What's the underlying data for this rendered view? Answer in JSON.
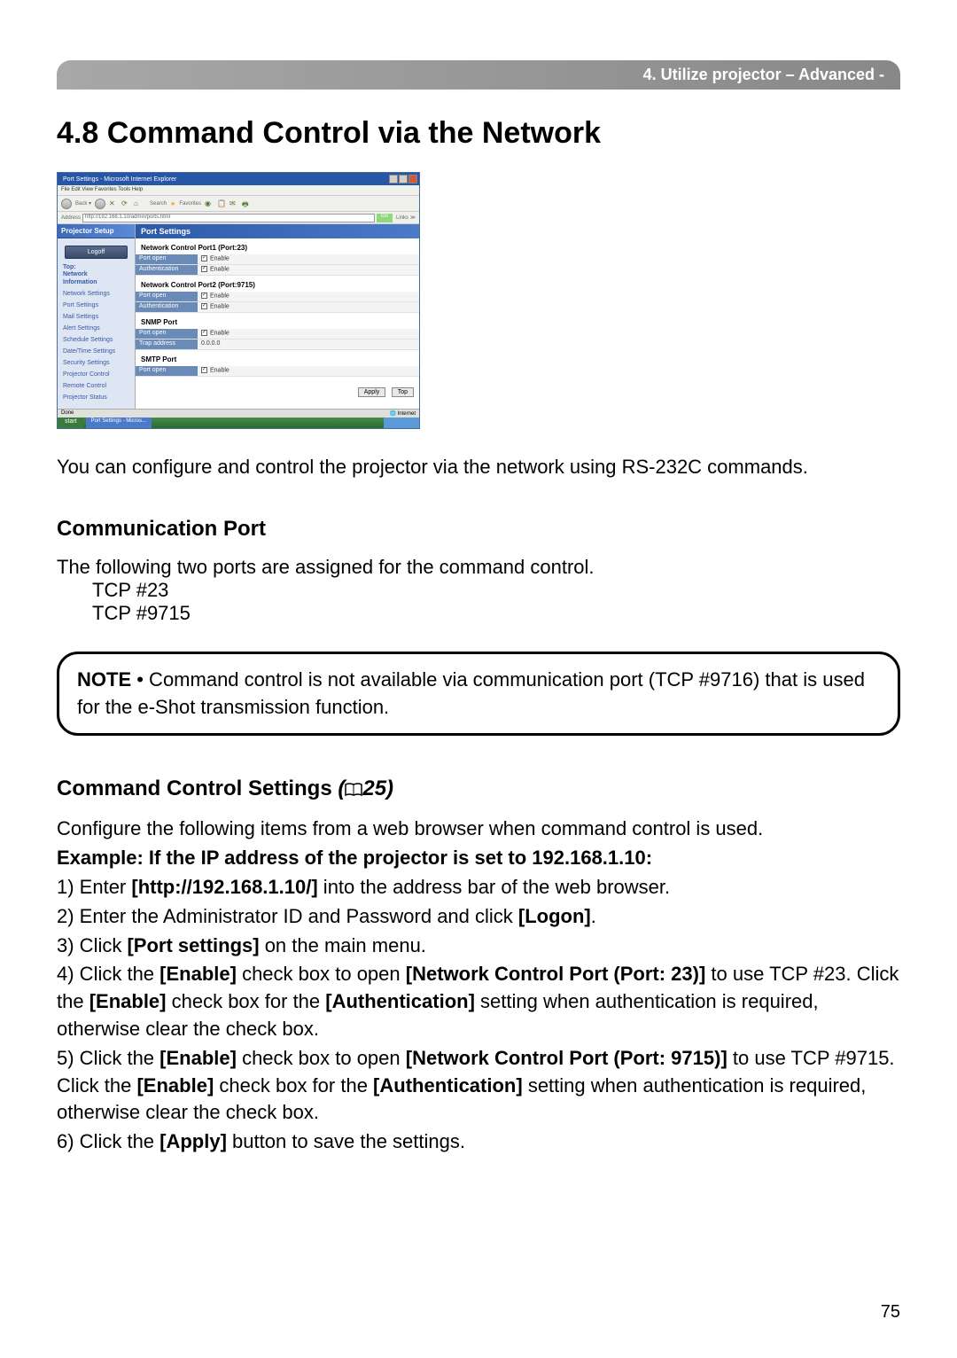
{
  "header": {
    "breadcrumb": "4. Utilize projector – Advanced -"
  },
  "section_title": "4.8 Command Control via the Network",
  "screenshot": {
    "window_title": "Port Settings - Microsoft Internet Explorer",
    "menubar": "File  Edit  View  Favorites  Tools  Help",
    "address": "http://192.168.1.10/admin/ports.html",
    "go": "Go",
    "sidebar": {
      "header": "Projector Setup",
      "logoff_button": "Logoff",
      "top_label": "Top:\nNetwork\nInformation",
      "items": [
        "Network Settings",
        "Port Settings",
        "Mail Settings",
        "Alert Settings",
        "Schedule Settings",
        "Date/Time Settings",
        "Security Settings",
        "Projector Control",
        "Remote Control",
        "Projector Status"
      ]
    },
    "main": {
      "header": "Port Settings",
      "sections": [
        {
          "title": "Network Control Port1 (Port:23)",
          "rows": [
            {
              "label": "Port open",
              "value": "Enable",
              "checkbox": true
            },
            {
              "label": "Authentication",
              "value": "Enable",
              "checkbox": true
            }
          ]
        },
        {
          "title": "Network Control Port2 (Port:9715)",
          "rows": [
            {
              "label": "Port open",
              "value": "Enable",
              "checkbox": true
            },
            {
              "label": "Authentication",
              "value": "Enable",
              "checkbox": true
            }
          ]
        },
        {
          "title": "SNMP Port",
          "rows": [
            {
              "label": "Port open",
              "value": "Enable",
              "checkbox": true
            },
            {
              "label": "Trap address",
              "value": "0.0.0.0",
              "checkbox": false
            }
          ]
        },
        {
          "title": "SMTP Port",
          "rows": [
            {
              "label": "Port open",
              "value": "Enable",
              "checkbox": true
            }
          ]
        }
      ],
      "buttons": [
        "Apply",
        "Top"
      ]
    },
    "statusbar_left": "Done",
    "statusbar_right": "Internet",
    "start": "start",
    "task": "Port Settings - Micros..."
  },
  "intro_text": "You can configure and control the projector via the network using RS-232C commands.",
  "comm_port": {
    "heading": "Communication Port",
    "intro": "The following two ports are assigned for the command control.",
    "ports": [
      "TCP #23",
      "TCP #9715"
    ]
  },
  "note": {
    "label": "NOTE",
    "text": " • Command control is not available via communication port (TCP #9716) that is used for the e-Shot transmission function."
  },
  "cmd_settings": {
    "heading": "Command Control Settings",
    "ref": "25",
    "intro": "Configure the following items from a web browser when command control is used.",
    "example_label": "Example: If the IP address of the projector is set to 192.168.1.10:",
    "steps": [
      {
        "n": "1)",
        "pre": " Enter ",
        "bold1": "[http://192.168.1.10/]",
        "post": " into the address bar of the web browser."
      },
      {
        "n": "2)",
        "pre": " Enter the Administrator ID and Password and click ",
        "bold1": "[Logon]",
        "post": "."
      },
      {
        "n": "3)",
        "pre": " Click ",
        "bold1": "[Port settings]",
        "post": " on the main menu."
      },
      {
        "n": "4)",
        "t": " Click the ",
        "b1": "[Enable]",
        "t2": " check box to open ",
        "b2": "[Network Control Port (Port: 23)]",
        "t3": " to use TCP #23. Click the ",
        "b3": "[Enable]",
        "t4": " check box for the ",
        "b4": "[Authentication]",
        "t5": " setting when authentication is required, otherwise clear the check box."
      },
      {
        "n": "5)",
        "t": " Click the ",
        "b1": "[Enable]",
        "t2": " check box to open ",
        "b2": "[Network Control Port (Port: 9715)]",
        "t3": " to use TCP #9715. Click the ",
        "b3": "[Enable]",
        "t4": " check box for the ",
        "b4": "[Authentication]",
        "t5": " setting when authentication is required, otherwise clear the check box."
      },
      {
        "n": "6)",
        "pre": " Click the ",
        "bold1": "[Apply]",
        "post": " button to save the settings."
      }
    ]
  },
  "page_number": "75"
}
